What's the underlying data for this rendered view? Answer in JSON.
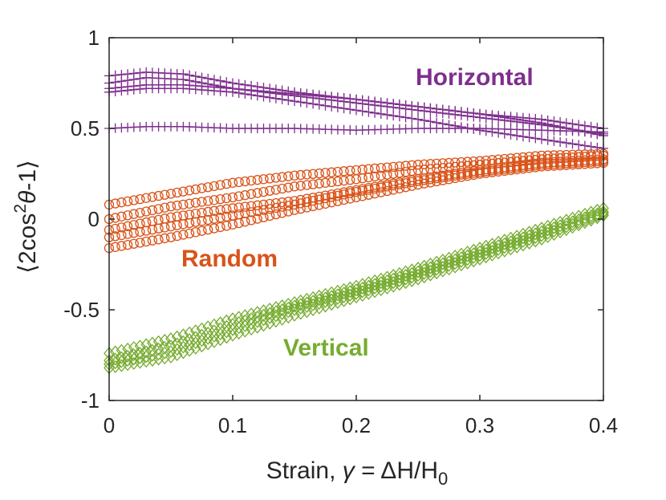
{
  "chart_data": {
    "type": "scatter",
    "title": "",
    "xlabel_parts": {
      "prefix": "Strain, ",
      "symbol": "γ",
      "middle": " = ΔH/H",
      "subscript": "0"
    },
    "ylabel_parts": {
      "open": "⟨2cos",
      "sup": "2",
      "theta": "θ",
      "close": "-1⟩"
    },
    "xlim": [
      0,
      0.4
    ],
    "ylim": [
      -1,
      1
    ],
    "xticks": [
      0,
      0.1,
      0.2,
      0.3,
      0.4
    ],
    "yticks": [
      -1,
      -0.5,
      0,
      0.5,
      1
    ],
    "xtick_labels": [
      "0",
      "0.1",
      "0.2",
      "0.3",
      "0.4"
    ],
    "ytick_labels": [
      "-1",
      "-0.5",
      "0",
      "0.5",
      "1"
    ],
    "grid": false,
    "colors": {
      "horizontal": "#7E2F8E",
      "random": "#D95319",
      "vertical": "#77AC30",
      "axis": "#262626"
    },
    "annotations": [
      {
        "label": "Horizontal",
        "group": "horizontal"
      },
      {
        "label": "Random",
        "group": "random"
      },
      {
        "label": "Vertical",
        "group": "vertical"
      }
    ],
    "x_start": 0,
    "x_step": 0.005,
    "series": [
      {
        "name": "Horizontal 1",
        "group": "horizontal",
        "marker": "plus",
        "keyframes": [
          [
            0,
            0.79
          ],
          [
            0.03,
            0.81
          ],
          [
            0.06,
            0.8
          ],
          [
            0.1,
            0.75
          ],
          [
            0.15,
            0.7
          ],
          [
            0.2,
            0.66
          ],
          [
            0.25,
            0.62
          ],
          [
            0.3,
            0.58
          ],
          [
            0.35,
            0.55
          ],
          [
            0.4,
            0.5
          ]
        ]
      },
      {
        "name": "Horizontal 2",
        "group": "horizontal",
        "marker": "plus",
        "keyframes": [
          [
            0,
            0.75
          ],
          [
            0.03,
            0.78
          ],
          [
            0.06,
            0.77
          ],
          [
            0.1,
            0.72
          ],
          [
            0.15,
            0.68
          ],
          [
            0.2,
            0.64
          ],
          [
            0.25,
            0.6
          ],
          [
            0.3,
            0.56
          ],
          [
            0.35,
            0.52
          ],
          [
            0.4,
            0.47
          ]
        ]
      },
      {
        "name": "Horizontal 3",
        "group": "horizontal",
        "marker": "plus",
        "keyframes": [
          [
            0,
            0.72
          ],
          [
            0.03,
            0.74
          ],
          [
            0.06,
            0.74
          ],
          [
            0.1,
            0.72
          ],
          [
            0.15,
            0.69
          ],
          [
            0.2,
            0.66
          ],
          [
            0.25,
            0.62
          ],
          [
            0.3,
            0.58
          ],
          [
            0.35,
            0.53
          ],
          [
            0.4,
            0.46
          ]
        ]
      },
      {
        "name": "Horizontal 4",
        "group": "horizontal",
        "marker": "plus",
        "keyframes": [
          [
            0,
            0.7
          ],
          [
            0.03,
            0.72
          ],
          [
            0.06,
            0.72
          ],
          [
            0.1,
            0.7
          ],
          [
            0.15,
            0.65
          ],
          [
            0.2,
            0.6
          ],
          [
            0.25,
            0.55
          ],
          [
            0.3,
            0.49
          ],
          [
            0.35,
            0.44
          ],
          [
            0.4,
            0.39
          ]
        ]
      },
      {
        "name": "Horizontal 5",
        "group": "horizontal",
        "marker": "plus",
        "keyframes": [
          [
            0,
            0.5
          ],
          [
            0.03,
            0.51
          ],
          [
            0.06,
            0.51
          ],
          [
            0.1,
            0.5
          ],
          [
            0.15,
            0.5
          ],
          [
            0.2,
            0.49
          ],
          [
            0.25,
            0.5
          ],
          [
            0.3,
            0.5
          ],
          [
            0.35,
            0.49
          ],
          [
            0.4,
            0.48
          ]
        ]
      },
      {
        "name": "Random 1",
        "group": "random",
        "marker": "circle",
        "keyframes": [
          [
            0,
            0.08
          ],
          [
            0.05,
            0.14
          ],
          [
            0.1,
            0.2
          ],
          [
            0.15,
            0.24
          ],
          [
            0.2,
            0.27
          ],
          [
            0.25,
            0.3
          ],
          [
            0.3,
            0.32
          ],
          [
            0.35,
            0.35
          ],
          [
            0.4,
            0.36
          ]
        ]
      },
      {
        "name": "Random 2",
        "group": "random",
        "marker": "circle",
        "keyframes": [
          [
            0,
            0.0
          ],
          [
            0.05,
            0.07
          ],
          [
            0.1,
            0.12
          ],
          [
            0.15,
            0.18
          ],
          [
            0.2,
            0.22
          ],
          [
            0.25,
            0.27
          ],
          [
            0.3,
            0.3
          ],
          [
            0.35,
            0.33
          ],
          [
            0.4,
            0.35
          ]
        ]
      },
      {
        "name": "Random 3",
        "group": "random",
        "marker": "circle",
        "keyframes": [
          [
            0,
            -0.06
          ],
          [
            0.05,
            0.01
          ],
          [
            0.1,
            0.06
          ],
          [
            0.15,
            0.1
          ],
          [
            0.2,
            0.16
          ],
          [
            0.25,
            0.22
          ],
          [
            0.3,
            0.27
          ],
          [
            0.35,
            0.31
          ],
          [
            0.4,
            0.33
          ]
        ]
      },
      {
        "name": "Random 4",
        "group": "random",
        "marker": "circle",
        "keyframes": [
          [
            0,
            -0.1
          ],
          [
            0.05,
            -0.04
          ],
          [
            0.1,
            0.02
          ],
          [
            0.15,
            0.08
          ],
          [
            0.2,
            0.15
          ],
          [
            0.25,
            0.21
          ],
          [
            0.3,
            0.26
          ],
          [
            0.35,
            0.3
          ],
          [
            0.4,
            0.32
          ]
        ]
      },
      {
        "name": "Random 5",
        "group": "random",
        "marker": "circle",
        "keyframes": [
          [
            0,
            -0.16
          ],
          [
            0.05,
            -0.1
          ],
          [
            0.1,
            -0.03
          ],
          [
            0.15,
            0.05
          ],
          [
            0.2,
            0.12
          ],
          [
            0.25,
            0.19
          ],
          [
            0.3,
            0.25
          ],
          [
            0.35,
            0.29
          ],
          [
            0.4,
            0.31
          ]
        ]
      },
      {
        "name": "Vertical 1",
        "group": "vertical",
        "marker": "diamond",
        "keyframes": [
          [
            0,
            -0.74
          ],
          [
            0.05,
            -0.66
          ],
          [
            0.1,
            -0.55
          ],
          [
            0.15,
            -0.46
          ],
          [
            0.2,
            -0.37
          ],
          [
            0.25,
            -0.27
          ],
          [
            0.3,
            -0.16
          ],
          [
            0.35,
            -0.05
          ],
          [
            0.4,
            0.06
          ]
        ]
      },
      {
        "name": "Vertical 2",
        "group": "vertical",
        "marker": "diamond",
        "keyframes": [
          [
            0,
            -0.78
          ],
          [
            0.05,
            -0.7
          ],
          [
            0.1,
            -0.58
          ],
          [
            0.15,
            -0.48
          ],
          [
            0.2,
            -0.39
          ],
          [
            0.25,
            -0.29
          ],
          [
            0.3,
            -0.18
          ],
          [
            0.35,
            -0.07
          ],
          [
            0.4,
            0.04
          ]
        ]
      },
      {
        "name": "Vertical 3",
        "group": "vertical",
        "marker": "diamond",
        "keyframes": [
          [
            0,
            -0.8
          ],
          [
            0.05,
            -0.73
          ],
          [
            0.1,
            -0.61
          ],
          [
            0.15,
            -0.5
          ],
          [
            0.2,
            -0.41
          ],
          [
            0.25,
            -0.31
          ],
          [
            0.3,
            -0.2
          ],
          [
            0.35,
            -0.09
          ],
          [
            0.4,
            0.03
          ]
        ]
      },
      {
        "name": "Vertical 4",
        "group": "vertical",
        "marker": "diamond",
        "keyframes": [
          [
            0,
            -0.82
          ],
          [
            0.05,
            -0.76
          ],
          [
            0.1,
            -0.64
          ],
          [
            0.15,
            -0.53
          ],
          [
            0.2,
            -0.43
          ],
          [
            0.25,
            -0.33
          ],
          [
            0.3,
            -0.22
          ],
          [
            0.35,
            -0.11
          ],
          [
            0.4,
            0.02
          ]
        ]
      }
    ]
  }
}
